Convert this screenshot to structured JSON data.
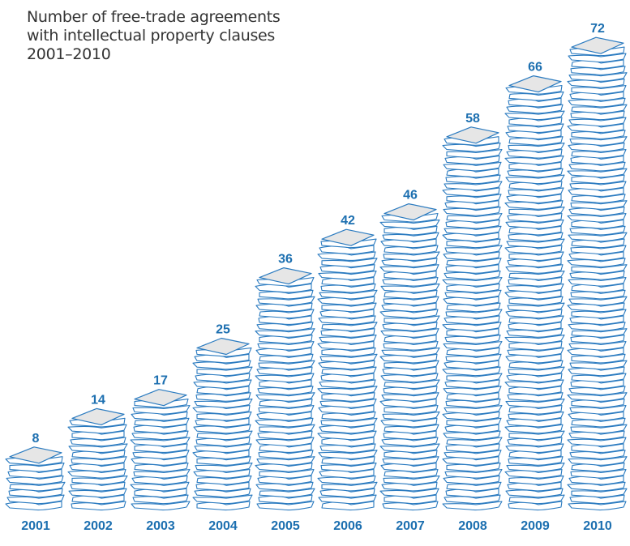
{
  "title_lines": [
    "Number of free-trade agreements",
    "with intellectual property clauses",
    "2001–2010"
  ],
  "colors": {
    "paper_stroke": "#2b7bc0",
    "paper_fill": "#ffffff",
    "top_fill": "#e6e6e6",
    "label": "#1c6fb0",
    "title": "#333333"
  },
  "chart_data": {
    "type": "bar",
    "style": "pictogram stacks of paper sheets",
    "title": "Number of free-trade agreements with intellectual property clauses 2001–2010",
    "categories": [
      "2001",
      "2002",
      "2003",
      "2004",
      "2005",
      "2006",
      "2007",
      "2008",
      "2009",
      "2010"
    ],
    "values": [
      8,
      14,
      17,
      25,
      36,
      42,
      46,
      58,
      66,
      72
    ],
    "ylim": [
      0,
      72
    ],
    "grid": false,
    "legend": "none"
  }
}
